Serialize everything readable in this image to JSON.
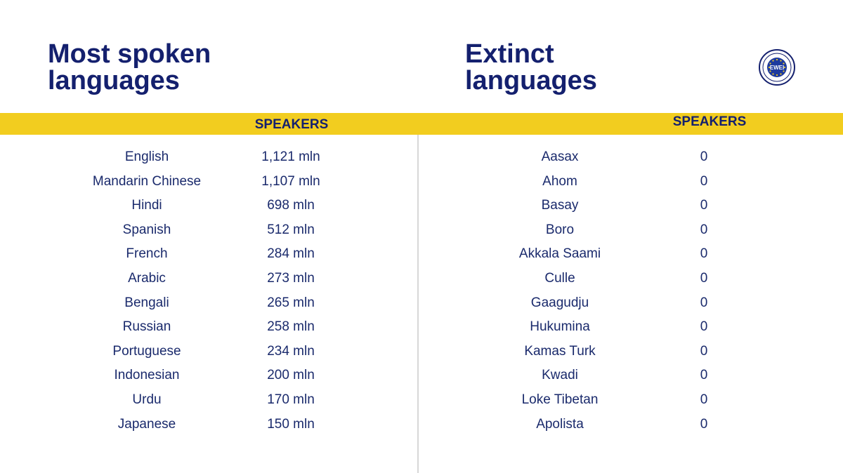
{
  "left": {
    "title_line1": "Most spoken",
    "title_line2": "languages",
    "header": "SPEAKERS",
    "rows": [
      {
        "name": "English",
        "value": "1,121 mln"
      },
      {
        "name": "Mandarin Chinese",
        "value": "1,107 mln"
      },
      {
        "name": "Hindi",
        "value": "698 mln"
      },
      {
        "name": "Spanish",
        "value": "512 mln"
      },
      {
        "name": "French",
        "value": "284 mln"
      },
      {
        "name": "Arabic",
        "value": "273 mln"
      },
      {
        "name": "Bengali",
        "value": "265 mln"
      },
      {
        "name": "Russian",
        "value": "258 mln"
      },
      {
        "name": "Portuguese",
        "value": "234 mln"
      },
      {
        "name": "Indonesian",
        "value": "200 mln"
      },
      {
        "name": "Urdu",
        "value": "170 mln"
      },
      {
        "name": "Japanese",
        "value": "150 mln"
      }
    ]
  },
  "right": {
    "title_line1": "Extinct",
    "title_line2": "languages",
    "header": "SPEAKERS",
    "rows": [
      {
        "name": "Aasax",
        "value": "0"
      },
      {
        "name": "Ahom",
        "value": "0"
      },
      {
        "name": "Basay",
        "value": "0"
      },
      {
        "name": "Boro",
        "value": "0"
      },
      {
        "name": "Akkala Saami",
        "value": "0"
      },
      {
        "name": "Culle",
        "value": "0"
      },
      {
        "name": "Gaagudju",
        "value": "0"
      },
      {
        "name": "Hukumina",
        "value": "0"
      },
      {
        "name": "Kamas Turk",
        "value": "0"
      },
      {
        "name": "Kwadi",
        "value": "0"
      },
      {
        "name": "Loke Tibetan",
        "value": "0"
      },
      {
        "name": "Apolista",
        "value": "0"
      }
    ]
  },
  "logo": {
    "text": "EWEI",
    "icon": "ewei-seal-icon"
  },
  "colors": {
    "navy": "#14206e",
    "band": "#f2cd1f",
    "divider": "#d7d7d7"
  }
}
